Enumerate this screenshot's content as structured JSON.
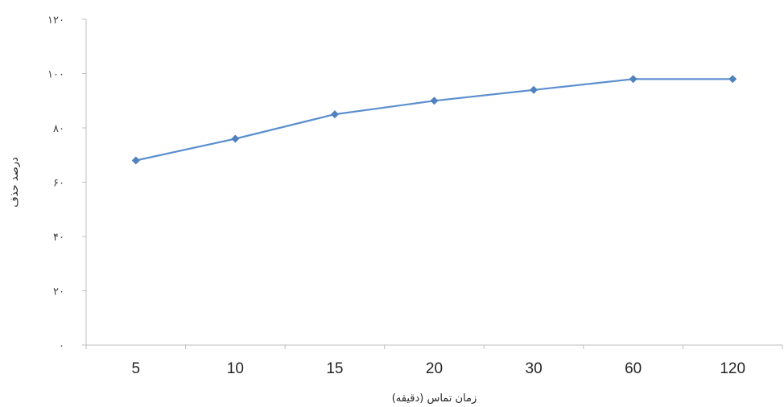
{
  "chart_data": {
    "type": "line",
    "categories": [
      "5",
      "10",
      "15",
      "20",
      "30",
      "60",
      "120"
    ],
    "series": [
      {
        "values": [
          68,
          76,
          85,
          90,
          94,
          98,
          98
        ]
      }
    ],
    "y_tick_labels": [
      "۰",
      "۲۰",
      "۴۰",
      "۶۰",
      "۸۰",
      "۱۰۰",
      "۱۲۰"
    ],
    "y_ticks": [
      0,
      20,
      40,
      60,
      80,
      100,
      120
    ],
    "ylim": [
      0,
      120
    ],
    "xlabel": "زمان تماس (دقیقه)",
    "ylabel": "درصد حذف",
    "grid": false,
    "legend": "none",
    "marker": "diamond",
    "colors": {
      "series": "#5b8fcf",
      "marker": "#4f81bd",
      "axis": "#bfbfbf"
    }
  }
}
